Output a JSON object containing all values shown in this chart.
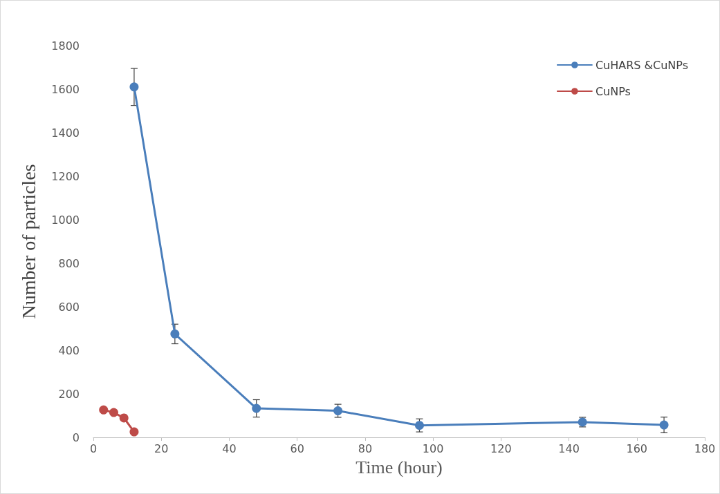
{
  "chart_data": {
    "type": "line",
    "xlabel": "Time (hour)",
    "ylabel": "Number of particles",
    "xlim": [
      0,
      180
    ],
    "xticks": [
      0,
      20,
      40,
      60,
      80,
      100,
      120,
      140,
      160,
      180
    ],
    "ylim": [
      0,
      1800
    ],
    "yticks": [
      0,
      200,
      400,
      600,
      800,
      1000,
      1200,
      1400,
      1600,
      1800
    ],
    "series": [
      {
        "name": "CuHARS &CuNPs",
        "color": "#4a7ebb",
        "x": [
          12,
          24,
          48,
          72,
          96,
          144,
          168
        ],
        "values": [
          1610,
          475,
          133,
          122,
          55,
          70,
          57
        ],
        "errors": [
          85,
          45,
          40,
          30,
          30,
          22,
          36
        ]
      },
      {
        "name": "CuNPs",
        "color": "#be4b48",
        "x": [
          3,
          6,
          9,
          12
        ],
        "values": [
          126,
          114,
          89,
          25
        ]
      }
    ],
    "marker": "circle",
    "line_style": "solid",
    "grid": false,
    "legend": "top right"
  }
}
